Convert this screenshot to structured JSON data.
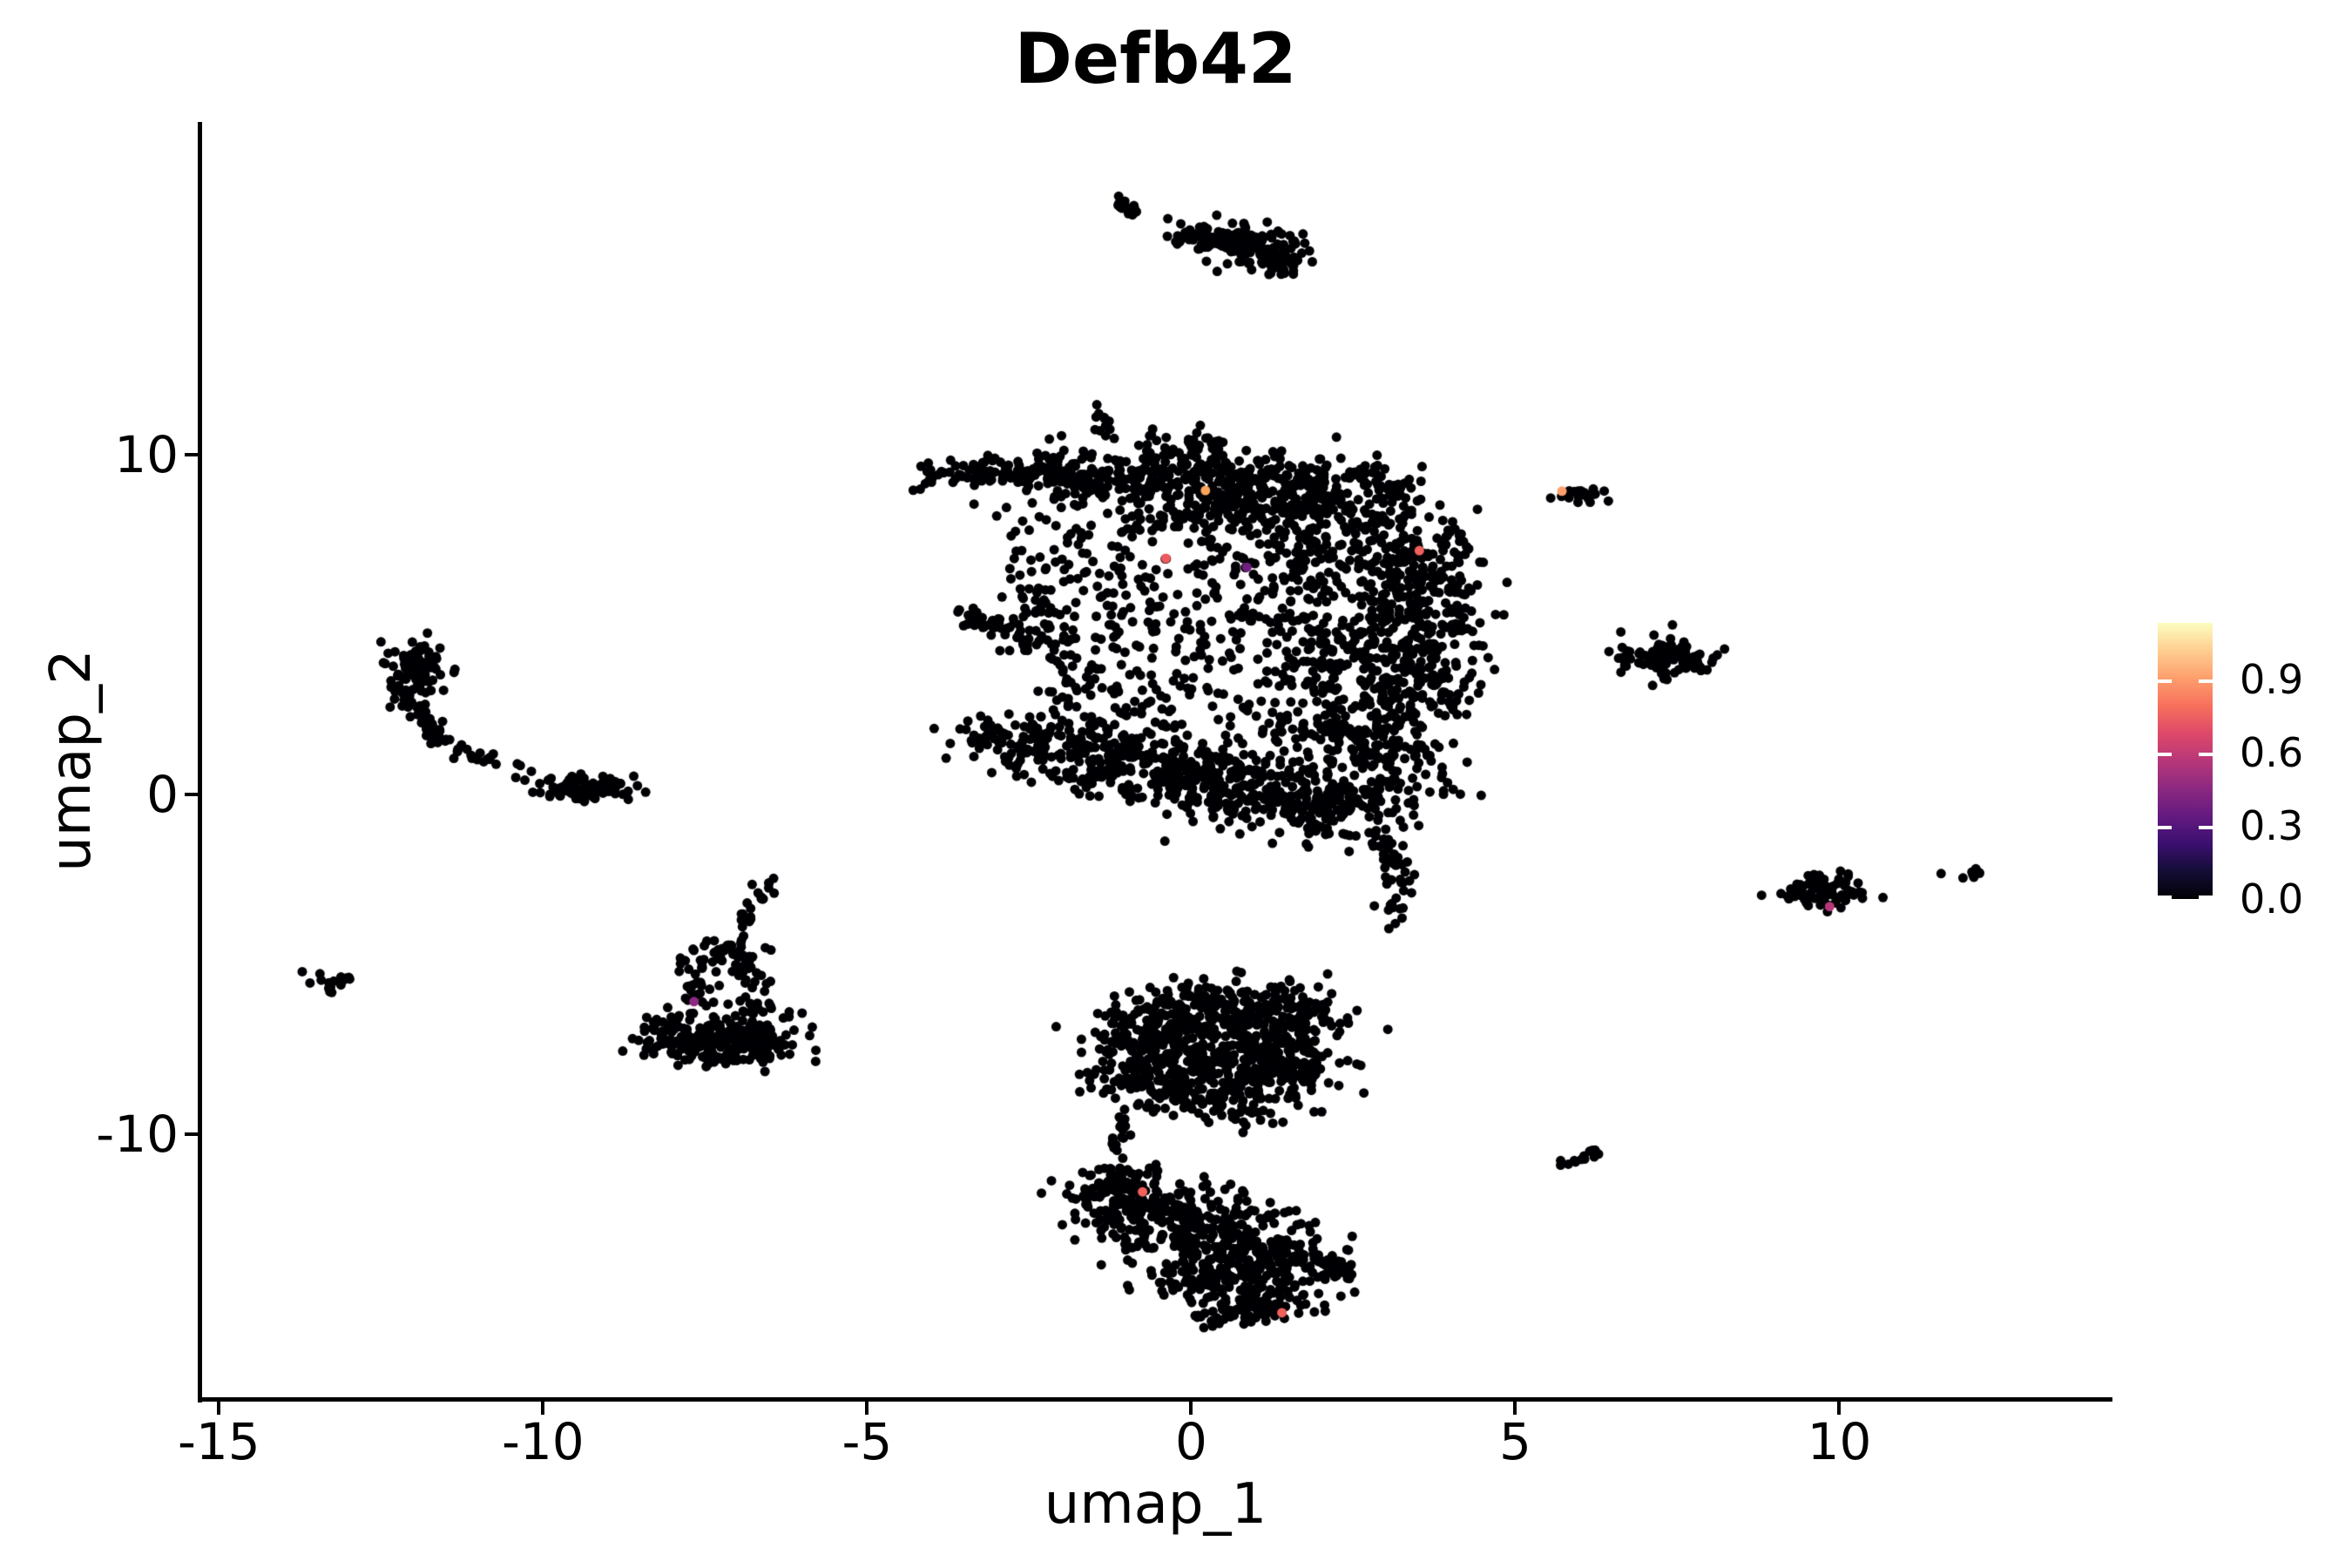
{
  "chart_data": {
    "type": "scatter",
    "title": "Defb42",
    "xlabel": "umap_1",
    "ylabel": "umap_2",
    "xlim": [
      -15.3,
      14.2
    ],
    "ylim": [
      -17.8,
      19.8
    ],
    "x_ticks": [
      -15,
      -10,
      -5,
      0,
      5,
      10
    ],
    "y_ticks": [
      10,
      0,
      -10
    ],
    "grid": false,
    "legend_position": "right",
    "background": "#ffffff",
    "axis_color": "#000000",
    "point_color": "#000004",
    "point_radius_px": 5.5,
    "colorbar": {
      "colormap": "magma",
      "ticks": [
        "0.9",
        "0.6",
        "0.3",
        "0.0"
      ],
      "tick_values": [
        0.9,
        0.6,
        0.3,
        0.0
      ],
      "vmax": 1.13,
      "gradient_stops": [
        {
          "pos": 0.0,
          "color": "#000004"
        },
        {
          "pos": 0.1,
          "color": "#140e36"
        },
        {
          "pos": 0.2,
          "color": "#3b0f70"
        },
        {
          "pos": 0.3,
          "color": "#641a80"
        },
        {
          "pos": 0.4,
          "color": "#8c2981"
        },
        {
          "pos": 0.5,
          "color": "#b73779"
        },
        {
          "pos": 0.6,
          "color": "#de4968"
        },
        {
          "pos": 0.7,
          "color": "#f7705c"
        },
        {
          "pos": 0.8,
          "color": "#fe9f6d"
        },
        {
          "pos": 0.9,
          "color": "#fece91"
        },
        {
          "pos": 1.0,
          "color": "#fcfdbf"
        }
      ]
    },
    "clusters": [
      {
        "name": "top-dash",
        "type": "path",
        "pts": [
          [
            -1.16,
            17.55
          ],
          [
            -0.82,
            17.05
          ]
        ],
        "spread": 0.07,
        "n": 24
      },
      {
        "name": "top-trail",
        "type": "dots",
        "pts": [
          [
            -0.36,
            16.95
          ],
          [
            -0.16,
            16.8
          ],
          [
            0.13,
            16.7
          ],
          [
            -0.02,
            16.62
          ]
        ]
      },
      {
        "name": "top-clump-a",
        "type": "gauss",
        "cx": 0.38,
        "cy": 16.42,
        "sx": 0.28,
        "sy": 0.18,
        "n": 45
      },
      {
        "name": "top-clump-b",
        "type": "gauss",
        "cx": 0.85,
        "cy": 16.25,
        "sx": 0.38,
        "sy": 0.28,
        "n": 70
      },
      {
        "name": "top-clump-c",
        "type": "gauss",
        "cx": 1.22,
        "cy": 15.85,
        "sx": 0.28,
        "sy": 0.22,
        "n": 45
      },
      {
        "name": "top-clump-d",
        "type": "gauss",
        "cx": 1.45,
        "cy": 15.55,
        "sx": 0.18,
        "sy": 0.12,
        "n": 20
      },
      {
        "name": "central-left-arm",
        "type": "path",
        "pts": [
          [
            -4.12,
            9.35
          ],
          [
            -3.2,
            9.55
          ],
          [
            -2.1,
            9.5
          ]
        ],
        "spread": 0.22,
        "n": 95
      },
      {
        "name": "central-left-arm-trail",
        "type": "dots",
        "pts": [
          [
            -3.35,
            8.55
          ],
          [
            -3.0,
            8.2
          ],
          [
            -2.85,
            8.45
          ],
          [
            -2.6,
            8.05
          ]
        ]
      },
      {
        "name": "central-top-protrusion",
        "type": "path",
        "pts": [
          [
            -1.52,
            11.35
          ],
          [
            -1.3,
            10.72
          ]
        ],
        "spread": 0.1,
        "n": 13
      },
      {
        "name": "central-upper-1",
        "type": "gauss",
        "cx": -1.6,
        "cy": 9.3,
        "sx": 0.5,
        "sy": 0.45,
        "n": 110
      },
      {
        "name": "central-upper-2",
        "type": "gauss",
        "cx": -0.3,
        "cy": 9.5,
        "sx": 0.65,
        "sy": 0.45,
        "n": 140
      },
      {
        "name": "central-upper-3",
        "type": "gauss",
        "cx": 1.0,
        "cy": 9.15,
        "sx": 0.75,
        "sy": 0.5,
        "n": 150
      },
      {
        "name": "central-upper-4",
        "type": "gauss",
        "cx": 2.35,
        "cy": 8.85,
        "sx": 0.65,
        "sy": 0.5,
        "n": 130
      },
      {
        "name": "central-upper-5",
        "type": "gauss",
        "cx": 0.3,
        "cy": 8.35,
        "sx": 0.85,
        "sy": 0.45,
        "n": 110
      },
      {
        "name": "central-upper-topdots",
        "type": "path",
        "pts": [
          [
            -0.6,
            10.45
          ],
          [
            0.55,
            10.25
          ]
        ],
        "spread": 0.12,
        "n": 10
      },
      {
        "name": "central-right-1",
        "type": "gauss",
        "cx": 2.9,
        "cy": 7.2,
        "sx": 0.7,
        "sy": 0.65,
        "n": 160
      },
      {
        "name": "central-right-2",
        "type": "gauss",
        "cx": 3.5,
        "cy": 5.5,
        "sx": 0.5,
        "sy": 0.85,
        "n": 140
      },
      {
        "name": "central-right-3",
        "type": "gauss",
        "cx": 2.6,
        "cy": 4.3,
        "sx": 0.75,
        "sy": 0.75,
        "n": 150
      },
      {
        "name": "central-right-4",
        "type": "gauss",
        "cx": 3.35,
        "cy": 3.0,
        "sx": 0.55,
        "sy": 0.75,
        "n": 120
      },
      {
        "name": "central-right-5",
        "type": "gauss",
        "cx": 2.2,
        "cy": 1.9,
        "sx": 0.75,
        "sy": 0.65,
        "n": 120
      },
      {
        "name": "central-right-6",
        "type": "gauss",
        "cx": 3.15,
        "cy": 0.9,
        "sx": 0.55,
        "sy": 0.55,
        "n": 85
      },
      {
        "name": "central-right-edge",
        "type": "path",
        "pts": [
          [
            4.0,
            8.0
          ],
          [
            4.15,
            6.2
          ],
          [
            4.1,
            4.6
          ]
        ],
        "spread": 0.13,
        "n": 40
      },
      {
        "name": "central-mid-fill",
        "type": "uniform",
        "x0": -2.2,
        "y0": 2.0,
        "x1": 2.2,
        "y1": 8.0,
        "n": 400
      },
      {
        "name": "central-left-edge",
        "type": "path",
        "pts": [
          [
            -2.65,
            7.7
          ],
          [
            -2.3,
            6.3
          ],
          [
            -2.45,
            5.2
          ]
        ],
        "spread": 0.18,
        "n": 30
      },
      {
        "name": "central-left-sparse",
        "type": "uniform",
        "x0": -3.0,
        "y0": 4.2,
        "x1": -1.9,
        "y1": 6.0,
        "n": 25
      },
      {
        "name": "west-streak",
        "type": "path",
        "pts": [
          [
            -3.55,
            5.45
          ],
          [
            -2.95,
            4.85
          ],
          [
            -2.5,
            4.25
          ]
        ],
        "spread": 0.13,
        "n": 45
      },
      {
        "name": "central-lowerleft-1",
        "type": "gauss",
        "cx": -2.3,
        "cy": 1.6,
        "sx": 0.5,
        "sy": 0.5,
        "n": 85
      },
      {
        "name": "central-lowerleft-2",
        "type": "gauss",
        "cx": -1.35,
        "cy": 1.15,
        "sx": 0.7,
        "sy": 0.55,
        "n": 150
      },
      {
        "name": "central-lowerleft-3",
        "type": "gauss",
        "cx": -0.2,
        "cy": 0.6,
        "sx": 0.75,
        "sy": 0.55,
        "n": 150
      },
      {
        "name": "central-lowerleft-tip",
        "type": "path",
        "pts": [
          [
            -3.6,
            1.85
          ],
          [
            -2.9,
            1.6
          ]
        ],
        "spread": 0.18,
        "n": 25
      },
      {
        "name": "central-bottom-1",
        "type": "gauss",
        "cx": 0.9,
        "cy": 0.0,
        "sx": 0.85,
        "sy": 0.5,
        "n": 160
      },
      {
        "name": "central-bottom-2",
        "type": "gauss",
        "cx": 2.2,
        "cy": -0.45,
        "sx": 0.65,
        "sy": 0.5,
        "n": 120
      },
      {
        "name": "central-bottom-tail",
        "type": "path",
        "pts": [
          [
            2.85,
            -1.1
          ],
          [
            3.25,
            -2.3
          ],
          [
            3.1,
            -3.5
          ]
        ],
        "spread": 0.16,
        "n": 45
      },
      {
        "name": "central-tail-tip",
        "type": "dots",
        "pts": [
          [
            3.15,
            -3.8
          ],
          [
            3.05,
            -3.95
          ]
        ]
      },
      {
        "name": "crescent-top-blob",
        "type": "gauss",
        "cx": -11.95,
        "cy": 3.5,
        "sx": 0.26,
        "sy": 0.5,
        "n": 105
      },
      {
        "name": "crescent-arc",
        "type": "path",
        "pts": [
          [
            -11.95,
            2.45
          ],
          [
            -11.65,
            1.7
          ],
          [
            -11.15,
            1.2
          ],
          [
            -10.62,
            0.95
          ]
        ],
        "spread": 0.09,
        "n": 48
      },
      {
        "name": "crescent-dots",
        "type": "dots",
        "pts": [
          [
            -11.55,
            2.15
          ],
          [
            -10.35,
            0.85
          ],
          [
            -10.18,
            0.68
          ],
          [
            -10.42,
            0.5
          ],
          [
            -10.28,
            0.42
          ],
          [
            -10.05,
            0.32
          ],
          [
            -9.92,
            0.42
          ]
        ]
      },
      {
        "name": "crescent-right-blob",
        "type": "gauss",
        "cx": -9.3,
        "cy": 0.18,
        "sx": 0.3,
        "sy": 0.17,
        "n": 90
      },
      {
        "name": "far-left-tiny",
        "type": "gauss",
        "cx": -13.25,
        "cy": -5.5,
        "sx": 0.17,
        "sy": 0.2,
        "n": 16
      },
      {
        "name": "triangle-spine-right",
        "type": "path",
        "pts": [
          [
            -6.48,
            -2.5
          ],
          [
            -6.9,
            -3.8
          ],
          [
            -6.95,
            -5.5
          ]
        ],
        "spread": 0.1,
        "n": 40
      },
      {
        "name": "triangle-spine-left",
        "type": "path",
        "pts": [
          [
            -7.35,
            -4.3
          ],
          [
            -7.55,
            -5.4
          ],
          [
            -7.68,
            -6.2
          ]
        ],
        "spread": 0.1,
        "n": 28
      },
      {
        "name": "triangle-fill",
        "type": "uniform",
        "x0": -7.9,
        "y0": -6.5,
        "x1": -6.4,
        "y1": -4.4,
        "n": 55
      },
      {
        "name": "triangle-base-1",
        "type": "gauss",
        "cx": -7.95,
        "cy": -7.0,
        "sx": 0.28,
        "sy": 0.33,
        "n": 55
      },
      {
        "name": "triangle-base-2",
        "type": "gauss",
        "cx": -7.3,
        "cy": -7.2,
        "sx": 0.42,
        "sy": 0.33,
        "n": 85
      },
      {
        "name": "triangle-base-3",
        "type": "gauss",
        "cx": -6.6,
        "cy": -7.1,
        "sx": 0.33,
        "sy": 0.33,
        "n": 65
      },
      {
        "name": "triangle-base-edge",
        "type": "gauss",
        "cx": -7.25,
        "cy": -7.75,
        "sx": 0.5,
        "sy": 0.13,
        "n": 35
      },
      {
        "name": "bottom-upper-1",
        "type": "gauss",
        "cx": -0.6,
        "cy": -6.9,
        "sx": 0.5,
        "sy": 0.5,
        "n": 130
      },
      {
        "name": "bottom-upper-2",
        "type": "gauss",
        "cx": 0.6,
        "cy": -6.35,
        "sx": 0.65,
        "sy": 0.45,
        "n": 140
      },
      {
        "name": "bottom-upper-3",
        "type": "gauss",
        "cx": 1.5,
        "cy": -6.65,
        "sx": 0.5,
        "sy": 0.5,
        "n": 115
      },
      {
        "name": "bottom-upper-4",
        "type": "gauss",
        "cx": 0.2,
        "cy": -7.6,
        "sx": 0.75,
        "sy": 0.5,
        "n": 160
      },
      {
        "name": "bottom-upper-5",
        "type": "gauss",
        "cx": 1.45,
        "cy": -7.95,
        "sx": 0.5,
        "sy": 0.45,
        "n": 120
      },
      {
        "name": "bottom-upper-6",
        "type": "gauss",
        "cx": -0.7,
        "cy": -8.3,
        "sx": 0.45,
        "sy": 0.45,
        "n": 105
      },
      {
        "name": "bottom-upper-7",
        "type": "gauss",
        "cx": 0.5,
        "cy": -8.95,
        "sx": 0.65,
        "sy": 0.4,
        "n": 115
      },
      {
        "name": "bottom-upper-topdots",
        "type": "path",
        "pts": [
          [
            -0.25,
            -5.8
          ],
          [
            0.15,
            -5.95
          ]
        ],
        "spread": 0.1,
        "n": 7
      },
      {
        "name": "neck",
        "type": "path",
        "pts": [
          [
            -1.02,
            -9.6
          ],
          [
            -1.18,
            -10.85
          ]
        ],
        "spread": 0.1,
        "n": 15
      },
      {
        "name": "bottom-lower-topdots",
        "type": "path",
        "pts": [
          [
            -1.55,
            -11.05
          ],
          [
            -0.55,
            -11.2
          ]
        ],
        "spread": 0.12,
        "n": 18
      },
      {
        "name": "bottom-lower-1",
        "type": "gauss",
        "cx": -1.25,
        "cy": -11.85,
        "sx": 0.38,
        "sy": 0.45,
        "n": 85
      },
      {
        "name": "bottom-lower-2",
        "type": "gauss",
        "cx": -0.5,
        "cy": -12.35,
        "sx": 0.55,
        "sy": 0.5,
        "n": 125
      },
      {
        "name": "bottom-lower-3",
        "type": "gauss",
        "cx": 0.4,
        "cy": -12.95,
        "sx": 0.65,
        "sy": 0.55,
        "n": 150
      },
      {
        "name": "bottom-lower-4",
        "type": "gauss",
        "cx": 1.2,
        "cy": -13.8,
        "sx": 0.55,
        "sy": 0.5,
        "n": 135
      },
      {
        "name": "bottom-lower-5",
        "type": "gauss",
        "cx": 0.25,
        "cy": -14.2,
        "sx": 0.45,
        "sy": 0.4,
        "n": 85
      },
      {
        "name": "bottom-lower-6",
        "type": "gauss",
        "cx": 1.05,
        "cy": -14.9,
        "sx": 0.45,
        "sy": 0.35,
        "n": 85
      },
      {
        "name": "bottom-lower-low",
        "type": "gauss",
        "cx": 0.65,
        "cy": -15.3,
        "sx": 0.38,
        "sy": 0.22,
        "n": 40
      },
      {
        "name": "bottom-lower-tail",
        "type": "path",
        "pts": [
          [
            1.85,
            -13.65
          ],
          [
            2.45,
            -14.05
          ]
        ],
        "spread": 0.15,
        "n": 28
      },
      {
        "name": "right-top-small",
        "type": "gauss",
        "cx": 5.98,
        "cy": 8.85,
        "sx": 0.2,
        "sy": 0.11,
        "n": 22
      },
      {
        "name": "right-mid",
        "type": "gauss",
        "cx": 7.35,
        "cy": 4.05,
        "sx": 0.36,
        "sy": 0.28,
        "n": 100
      },
      {
        "name": "right-mid-leftdots",
        "type": "path",
        "pts": [
          [
            6.55,
            4.3
          ],
          [
            6.95,
            4.15
          ]
        ],
        "spread": 0.1,
        "n": 7
      },
      {
        "name": "right-lower",
        "type": "gauss",
        "cx": 9.72,
        "cy": -2.85,
        "sx": 0.3,
        "sy": 0.23,
        "n": 80
      },
      {
        "name": "right-lower-leftdots",
        "type": "dots",
        "pts": [
          [
            9.2,
            -3.0
          ],
          [
            9.32,
            -2.88
          ],
          [
            9.1,
            -2.92
          ]
        ]
      },
      {
        "name": "right-tiny-dot",
        "type": "dots",
        "pts": [
          [
            11.57,
            -2.33
          ]
        ]
      },
      {
        "name": "right-tiny-pair",
        "type": "gauss",
        "cx": 12.05,
        "cy": -2.3,
        "sx": 0.11,
        "sy": 0.09,
        "n": 8
      },
      {
        "name": "southeast-tiny",
        "type": "path",
        "pts": [
          [
            5.82,
            -10.92
          ],
          [
            6.27,
            -10.45
          ]
        ],
        "spread": 0.07,
        "n": 12
      },
      {
        "name": "southeast-tiny-dot",
        "type": "dots",
        "pts": [
          [
            5.7,
            -10.78
          ]
        ]
      }
    ],
    "expressing_cells": [
      {
        "x": 0.22,
        "y": 8.95,
        "value": 0.88,
        "color": "#fca55d"
      },
      {
        "x": 3.52,
        "y": 7.18,
        "value": 0.73,
        "color": "#f1605d"
      },
      {
        "x": -0.39,
        "y": 6.95,
        "value": 0.7,
        "color": "#ef5a5e"
      },
      {
        "x": 0.86,
        "y": 6.69,
        "value": 0.4,
        "color": "#721f81"
      },
      {
        "x": -0.75,
        "y": -11.7,
        "value": 0.72,
        "color": "#f1605d"
      },
      {
        "x": 1.4,
        "y": -15.26,
        "value": 0.72,
        "color": "#f1605d"
      },
      {
        "x": -7.67,
        "y": -6.1,
        "value": 0.47,
        "color": "#8c2981"
      },
      {
        "x": 5.72,
        "y": 8.93,
        "value": 0.9,
        "color": "#fe9f6d"
      },
      {
        "x": 9.85,
        "y": -3.3,
        "value": 0.57,
        "color": "#b73779"
      }
    ]
  }
}
